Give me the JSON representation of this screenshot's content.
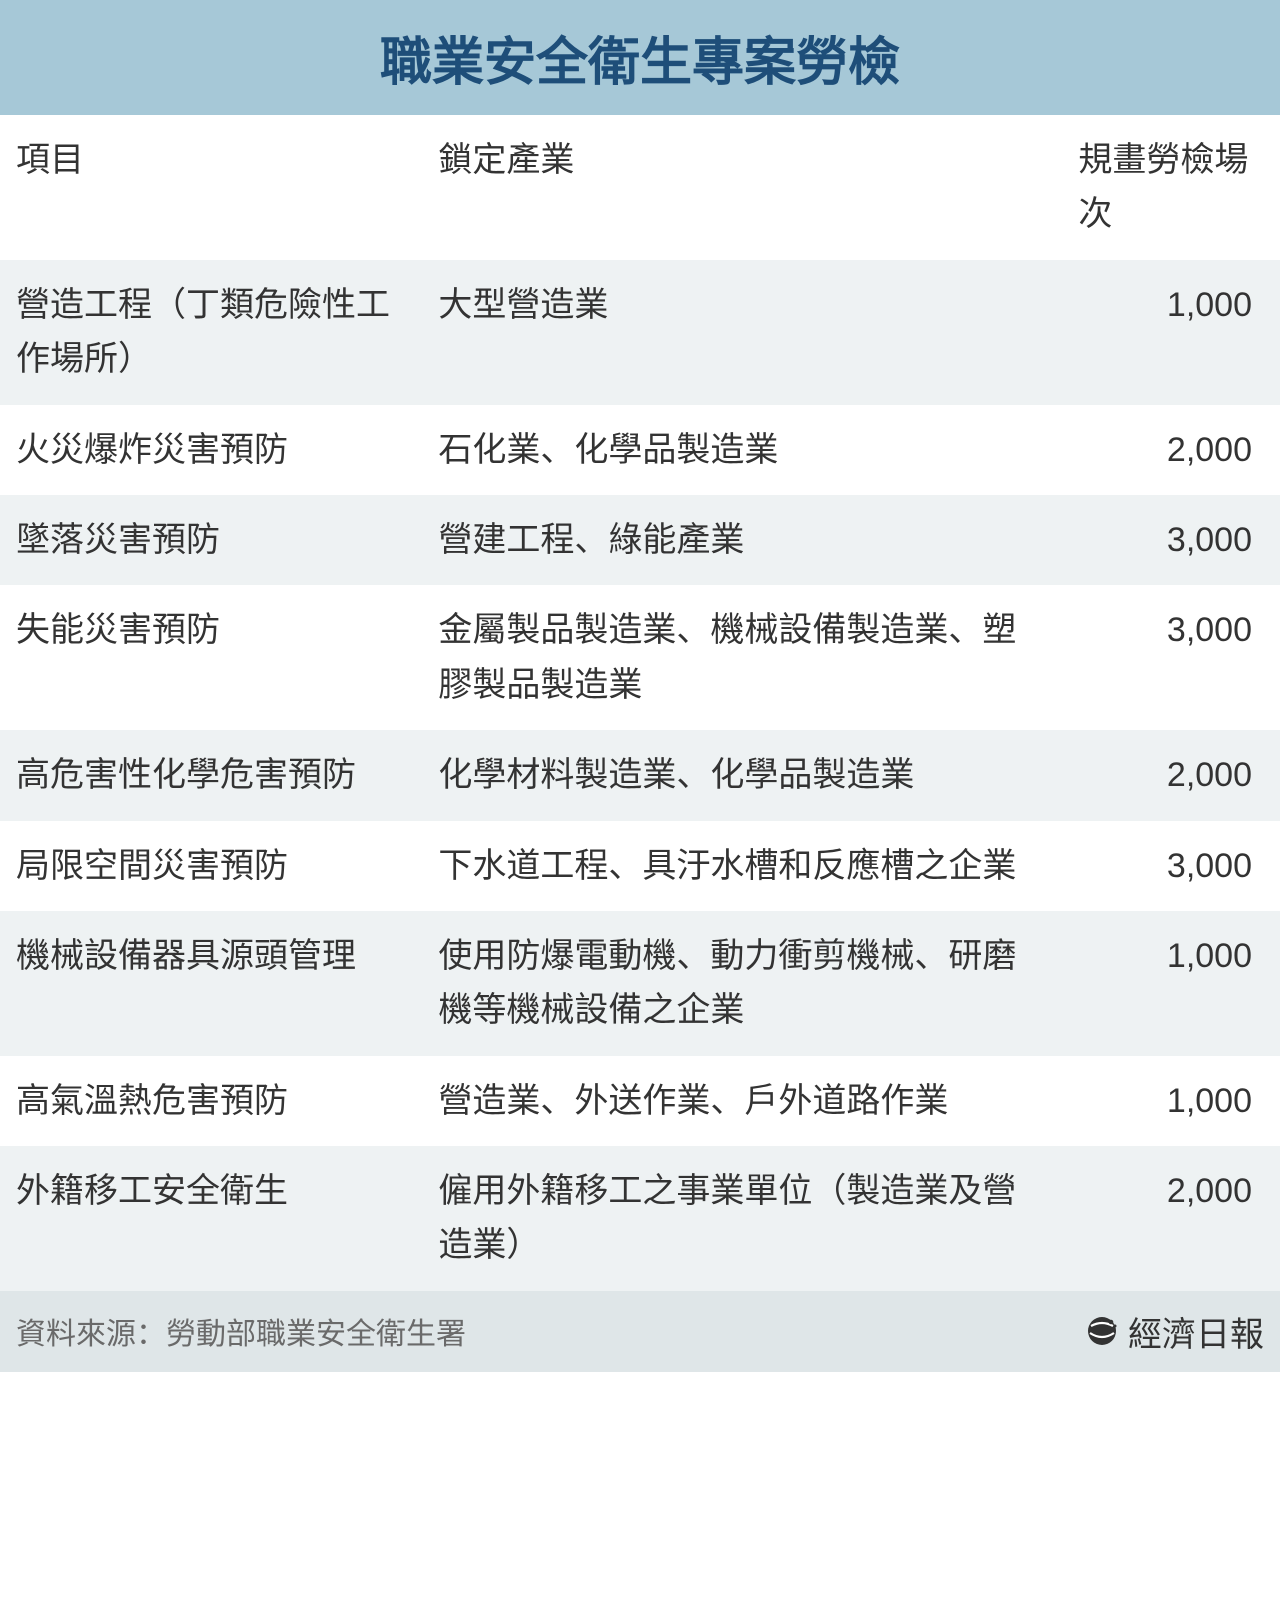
{
  "title": "職業安全衛生專案勞檢",
  "columns": [
    "項目",
    "鎖定產業",
    "規畫勞檢場次"
  ],
  "rows": [
    {
      "item": "營造工程（丁類危險性工作場所）",
      "industry": "大型營造業",
      "count": "1,000"
    },
    {
      "item": "火災爆炸災害預防",
      "industry": "石化業、化學品製造業",
      "count": "2,000"
    },
    {
      "item": "墜落災害預防",
      "industry": "營建工程、綠能產業",
      "count": "3,000"
    },
    {
      "item": "失能災害預防",
      "industry": "金屬製品製造業、機械設備製造業、塑膠製品製造業",
      "count": "3,000"
    },
    {
      "item": "高危害性化學危害預防",
      "industry": "化學材料製造業、化學品製造業",
      "count": "2,000"
    },
    {
      "item": "局限空間災害預防",
      "industry": "下水道工程、具汙水槽和反應槽之企業",
      "count": "3,000"
    },
    {
      "item": "機械設備器具源頭管理",
      "industry": "使用防爆電動機、動力衝剪機械、研磨機等機械設備之企業",
      "count": "1,000"
    },
    {
      "item": "高氣溫熱危害預防",
      "industry": "營造業、外送作業、戶外道路作業",
      "count": "1,000"
    },
    {
      "item": "外籍移工安全衛生",
      "industry": "僱用外籍移工之事業單位（製造業及營造業）",
      "count": "2,000"
    }
  ],
  "source_label": "資料來源：勞動部職業安全衛生署",
  "publisher": "經濟日報",
  "style": {
    "title_bg": "#a6c8d7",
    "title_color": "#1e4e79",
    "title_fontsize": 52,
    "header_bg": "#ffffff",
    "row_alt_bg": "#eef2f3",
    "row_bg": "#ffffff",
    "footer_bg": "#dfe6e8",
    "text_color": "#333333",
    "source_color": "#6a6a6a",
    "body_fontsize": 34,
    "col_widths_pct": [
      33,
      50,
      17
    ]
  }
}
